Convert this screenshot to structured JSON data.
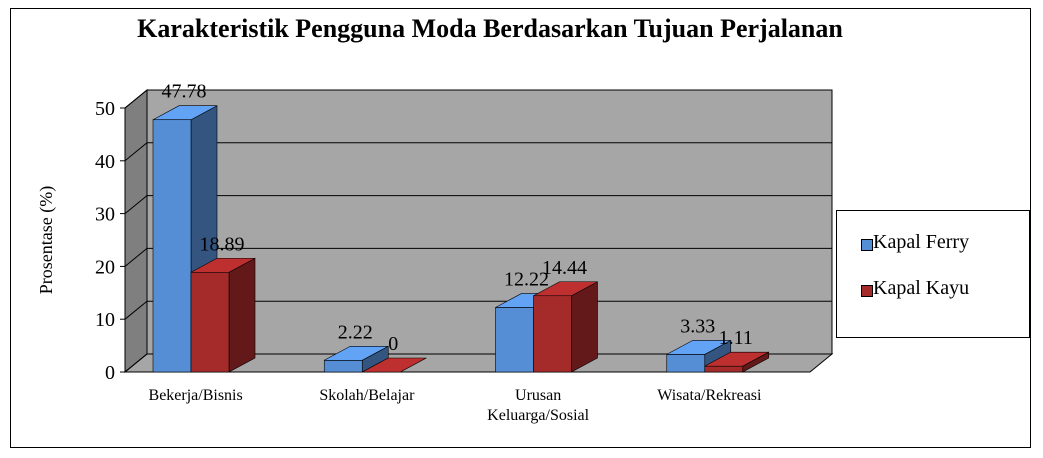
{
  "chart_data": {
    "type": "bar",
    "title": "Karakteristik Pengguna Moda Berdasarkan Tujuan Perjalanan",
    "ylabel": "Prosentase (%)",
    "categories": [
      "Bekerja/Bisnis",
      "Skolah/Belajar",
      "Urusan Keluarga/Sosial",
      "Wisata/Rekreasi"
    ],
    "series": [
      {
        "name": "Kapal Ferry",
        "color": "#558ed5",
        "values": [
          47.78,
          2.22,
          12.22,
          3.33
        ]
      },
      {
        "name": "Kapal Kayu",
        "color": "#a52a2a",
        "values": [
          18.89,
          0,
          14.44,
          1.11
        ]
      }
    ],
    "ylim": [
      0,
      50
    ],
    "yticks": [
      0,
      10,
      20,
      30,
      40,
      50
    ],
    "grid": true,
    "legend": "right"
  }
}
